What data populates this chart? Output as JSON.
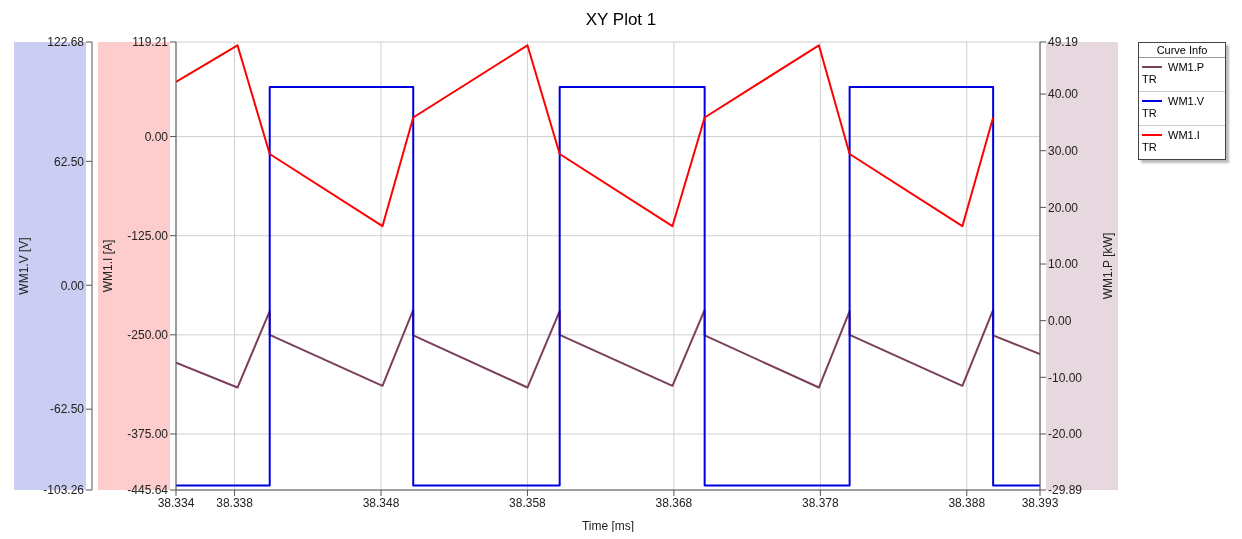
{
  "chart_data": {
    "type": "line",
    "title": "XY Plot 1",
    "xlabel": "Time [ms]",
    "ylabel": "WM1.V [V]",
    "y2label": "WM1.I [A]",
    "y3label": "WM1.P [kW]",
    "legend_title": "Curve Info",
    "legend": "top right",
    "grid": true,
    "annotations": [
      "TR",
      "TR",
      "TR"
    ],
    "xlim": [
      38.334,
      38.393
    ],
    "xticks": [
      38.334,
      38.338,
      38.348,
      38.358,
      38.368,
      38.378,
      38.388,
      38.393
    ],
    "ylim": [
      -103.26,
      122.68
    ],
    "yticks": [
      {
        "value": 122.68,
        "label": "122.68"
      },
      {
        "value": 62.5,
        "label": "62.50"
      },
      {
        "value": 0,
        "label": "0.00"
      },
      {
        "value": -62.5,
        "label": "-62.50"
      },
      {
        "value": -103.26,
        "label": "-103.26"
      }
    ],
    "y2lim": [
      -445.64,
      119.21
    ],
    "y2ticks": [
      {
        "value": 119.21,
        "label": "119.21"
      },
      {
        "value": 0,
        "label": "0.00"
      },
      {
        "value": -125,
        "label": "-125.00"
      },
      {
        "value": -250,
        "label": "-250.00"
      },
      {
        "value": -375,
        "label": "-375.00"
      },
      {
        "value": -445.64,
        "label": "-445.64"
      }
    ],
    "y3lim": [
      -29.89,
      49.19
    ],
    "y3ticks": [
      {
        "value": 49.19,
        "label": "49.19"
      },
      {
        "value": 40,
        "label": "40.00"
      },
      {
        "value": 30,
        "label": "30.00"
      },
      {
        "value": 20,
        "label": "20.00"
      },
      {
        "value": 10,
        "label": "10.00"
      },
      {
        "value": 0,
        "label": "0.00"
      },
      {
        "value": -10,
        "label": "-10.00"
      },
      {
        "value": -20,
        "label": "-20.00"
      },
      {
        "value": -29.89,
        "label": "-29.89"
      }
    ],
    "series": [
      {
        "name": "WM1.P",
        "color": "#7b3f5e",
        "axis": "y3",
        "x": [
          38.334,
          38.3382,
          38.3404,
          38.3404,
          38.3481,
          38.3502,
          38.3502,
          38.358,
          38.3602,
          38.3602,
          38.3679,
          38.3701,
          38.3701,
          38.3779,
          38.38,
          38.38,
          38.3877,
          38.3898,
          38.3898,
          38.393
        ],
        "values": [
          -7.4,
          -11.8,
          1.7,
          -2.5,
          -11.5,
          1.9,
          -2.6,
          -11.8,
          1.7,
          -2.5,
          -11.5,
          1.9,
          -2.6,
          -11.8,
          1.7,
          -2.5,
          -11.5,
          1.9,
          -2.6,
          -5.9
        ]
      },
      {
        "name": "WM1.V",
        "color": "#0000dd",
        "axis": "y",
        "x": [
          38.334,
          38.3404,
          38.3404,
          38.3502,
          38.3502,
          38.3602,
          38.3602,
          38.3701,
          38.3701,
          38.38,
          38.38,
          38.3898,
          38.3898,
          38.393
        ],
        "values": [
          -101,
          -101,
          100,
          100,
          -101,
          -101,
          100,
          100,
          -101,
          -101,
          100,
          100,
          -101,
          -101
        ]
      },
      {
        "name": "WM1.I",
        "color": "#ff0000",
        "axis": "y2",
        "x": [
          38.334,
          38.3382,
          38.3404,
          38.3481,
          38.3502,
          38.358,
          38.3602,
          38.3679,
          38.3701,
          38.3779,
          38.38,
          38.3877,
          38.3898
        ],
        "values": [
          69,
          115,
          -22,
          -113,
          24,
          115,
          -22,
          -113,
          24,
          115,
          -22,
          -113,
          24
        ]
      }
    ]
  }
}
